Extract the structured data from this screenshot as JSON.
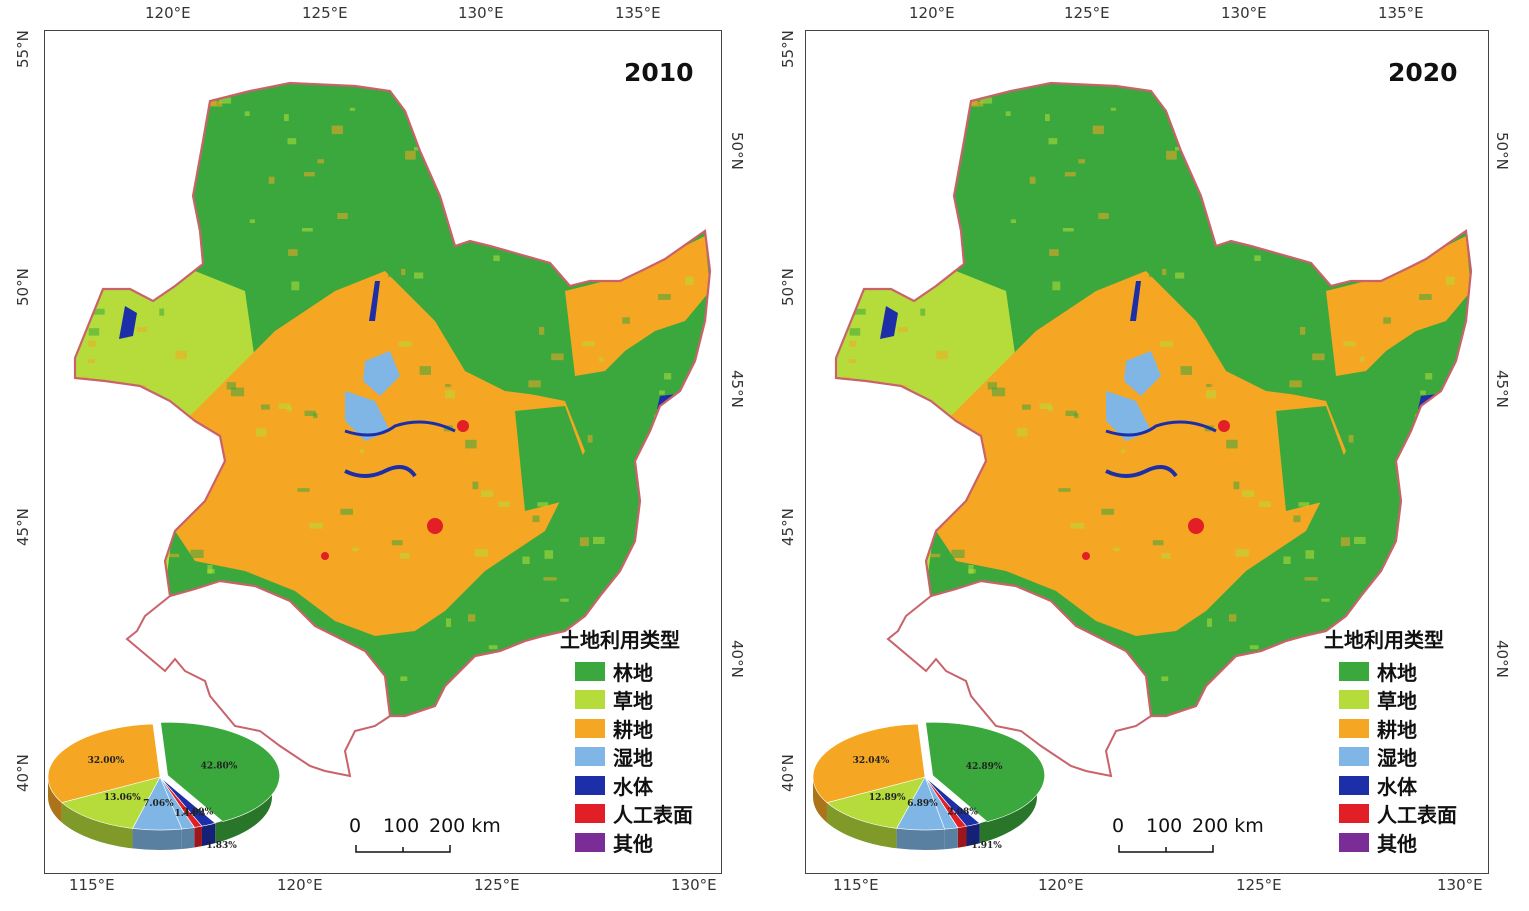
{
  "maps": [
    {
      "year": "2010",
      "top_lon_ticks": [
        "120°E",
        "125°E",
        "130°E",
        "135°E"
      ],
      "bottom_lon_ticks": [
        "115°E",
        "120°E",
        "125°E",
        "130°E"
      ],
      "left_lat_ticks": [
        "55°N",
        "50°N",
        "45°N",
        "40°N"
      ],
      "right_lat_ticks": [
        "50°N",
        "45°N",
        "40°N"
      ],
      "pie": [
        {
          "class": "林地",
          "percent": 42.8,
          "label": "42.80%"
        },
        {
          "class": "水体",
          "percent": 2.09,
          "label": "2.09%"
        },
        {
          "class": "人工表面",
          "percent": 1.14,
          "label": "1.14%"
        },
        {
          "class": "其他",
          "percent": 0.02,
          "label": ""
        },
        {
          "class": "湿地",
          "percent": 1.83,
          "label": "1.83%"
        },
        {
          "class": "湿地",
          "percent": 7.06,
          "label": "7.06%"
        },
        {
          "class": "草地",
          "percent": 13.06,
          "label": "13.06%"
        },
        {
          "class": "耕地",
          "percent": 32.0,
          "label": "32.00%"
        }
      ]
    },
    {
      "year": "2020",
      "top_lon_ticks": [
        "120°E",
        "125°E",
        "130°E",
        "135°E"
      ],
      "bottom_lon_ticks": [
        "115°E",
        "120°E",
        "125°E",
        "130°E"
      ],
      "left_lat_ticks": [
        "55°N",
        "50°N",
        "45°N",
        "40°N"
      ],
      "right_lat_ticks": [
        "50°N",
        "45°N",
        "40°N"
      ],
      "pie": [
        {
          "class": "林地",
          "percent": 42.89,
          "label": "42.89%"
        },
        {
          "class": "水体",
          "percent": 2.08,
          "label": "2.08%"
        },
        {
          "class": "人工表面",
          "percent": 1.3,
          "label": ""
        },
        {
          "class": "其他",
          "percent": 0.02,
          "label": ""
        },
        {
          "class": "湿地",
          "percent": 1.91,
          "label": "1.91%"
        },
        {
          "class": "湿地",
          "percent": 6.89,
          "label": "6.89%"
        },
        {
          "class": "草地",
          "percent": 12.89,
          "label": "12.89%"
        },
        {
          "class": "耕地",
          "percent": 32.04,
          "label": "32.04%"
        }
      ]
    }
  ],
  "legend": {
    "title": "土地利用类型",
    "items": [
      {
        "label": "林地",
        "color": "#3aa83c"
      },
      {
        "label": "草地",
        "color": "#b5dc3a"
      },
      {
        "label": "耕地",
        "color": "#f5a623"
      },
      {
        "label": "湿地",
        "color": "#7fb6e6"
      },
      {
        "label": "水体",
        "color": "#1c2fa8"
      },
      {
        "label": "人工表面",
        "color": "#e21f26"
      },
      {
        "label": "其他",
        "color": "#7b2d97"
      }
    ]
  },
  "scale_bar": {
    "labels": [
      "0",
      "100",
      "200 km"
    ]
  },
  "colors": {
    "boundary": "#c9626b",
    "frame": "#444444"
  }
}
